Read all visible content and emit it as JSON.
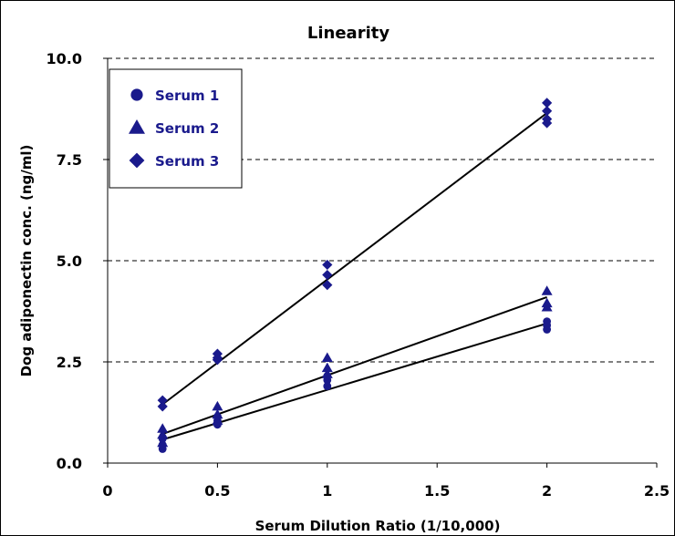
{
  "chart_data": {
    "type": "scatter",
    "title": "Linearity",
    "xlabel": "Serum Dilution Ratio (1/10,000)",
    "ylabel": "Dog adiponectin conc. (ng/ml)",
    "xlim": [
      0,
      2.5
    ],
    "ylim": [
      0,
      10
    ],
    "xticks": [
      0,
      0.5,
      1,
      1.5,
      2,
      2.5
    ],
    "xtick_labels": [
      "0",
      "0.5",
      "1",
      "1.5",
      "2",
      "2.5"
    ],
    "yticks": [
      0,
      2.5,
      5,
      7.5,
      10
    ],
    "ytick_labels": [
      "0.0",
      "2.5",
      "5.0",
      "7.5",
      "10.0"
    ],
    "grid": "horizontal dashed",
    "legend_position": "top-left",
    "marker_color": "#1a1a8c",
    "series": [
      {
        "name": "Serum 1",
        "marker": "circle",
        "points": [
          [
            0.25,
            0.35
          ],
          [
            0.25,
            0.45
          ],
          [
            0.25,
            0.6
          ],
          [
            0.5,
            0.95
          ],
          [
            0.5,
            1.05
          ],
          [
            0.5,
            1.15
          ],
          [
            1,
            1.9
          ],
          [
            1,
            2.05
          ],
          [
            1,
            2.15
          ],
          [
            2,
            3.3
          ],
          [
            2,
            3.4
          ],
          [
            2,
            3.5
          ]
        ],
        "fit": [
          [
            0.25,
            0.58
          ],
          [
            2,
            3.45
          ]
        ]
      },
      {
        "name": "Serum 2",
        "marker": "triangle",
        "points": [
          [
            0.25,
            0.5
          ],
          [
            0.25,
            0.7
          ],
          [
            0.25,
            0.85
          ],
          [
            0.5,
            1.05
          ],
          [
            0.5,
            1.2
          ],
          [
            0.5,
            1.4
          ],
          [
            1,
            2.2
          ],
          [
            1,
            2.35
          ],
          [
            1,
            2.6
          ],
          [
            2,
            3.85
          ],
          [
            2,
            3.95
          ],
          [
            2,
            4.25
          ]
        ],
        "fit": [
          [
            0.25,
            0.72
          ],
          [
            2,
            4.1
          ]
        ]
      },
      {
        "name": "Serum 3",
        "marker": "diamond",
        "points": [
          [
            0.25,
            1.4
          ],
          [
            0.25,
            1.55
          ],
          [
            0.5,
            2.55
          ],
          [
            0.5,
            2.6
          ],
          [
            0.5,
            2.7
          ],
          [
            1,
            4.4
          ],
          [
            1,
            4.65
          ],
          [
            1,
            4.9
          ],
          [
            2,
            8.4
          ],
          [
            2,
            8.5
          ],
          [
            2,
            8.7
          ],
          [
            2,
            8.9
          ]
        ],
        "fit": [
          [
            0.25,
            1.45
          ],
          [
            2,
            8.65
          ]
        ]
      }
    ]
  }
}
